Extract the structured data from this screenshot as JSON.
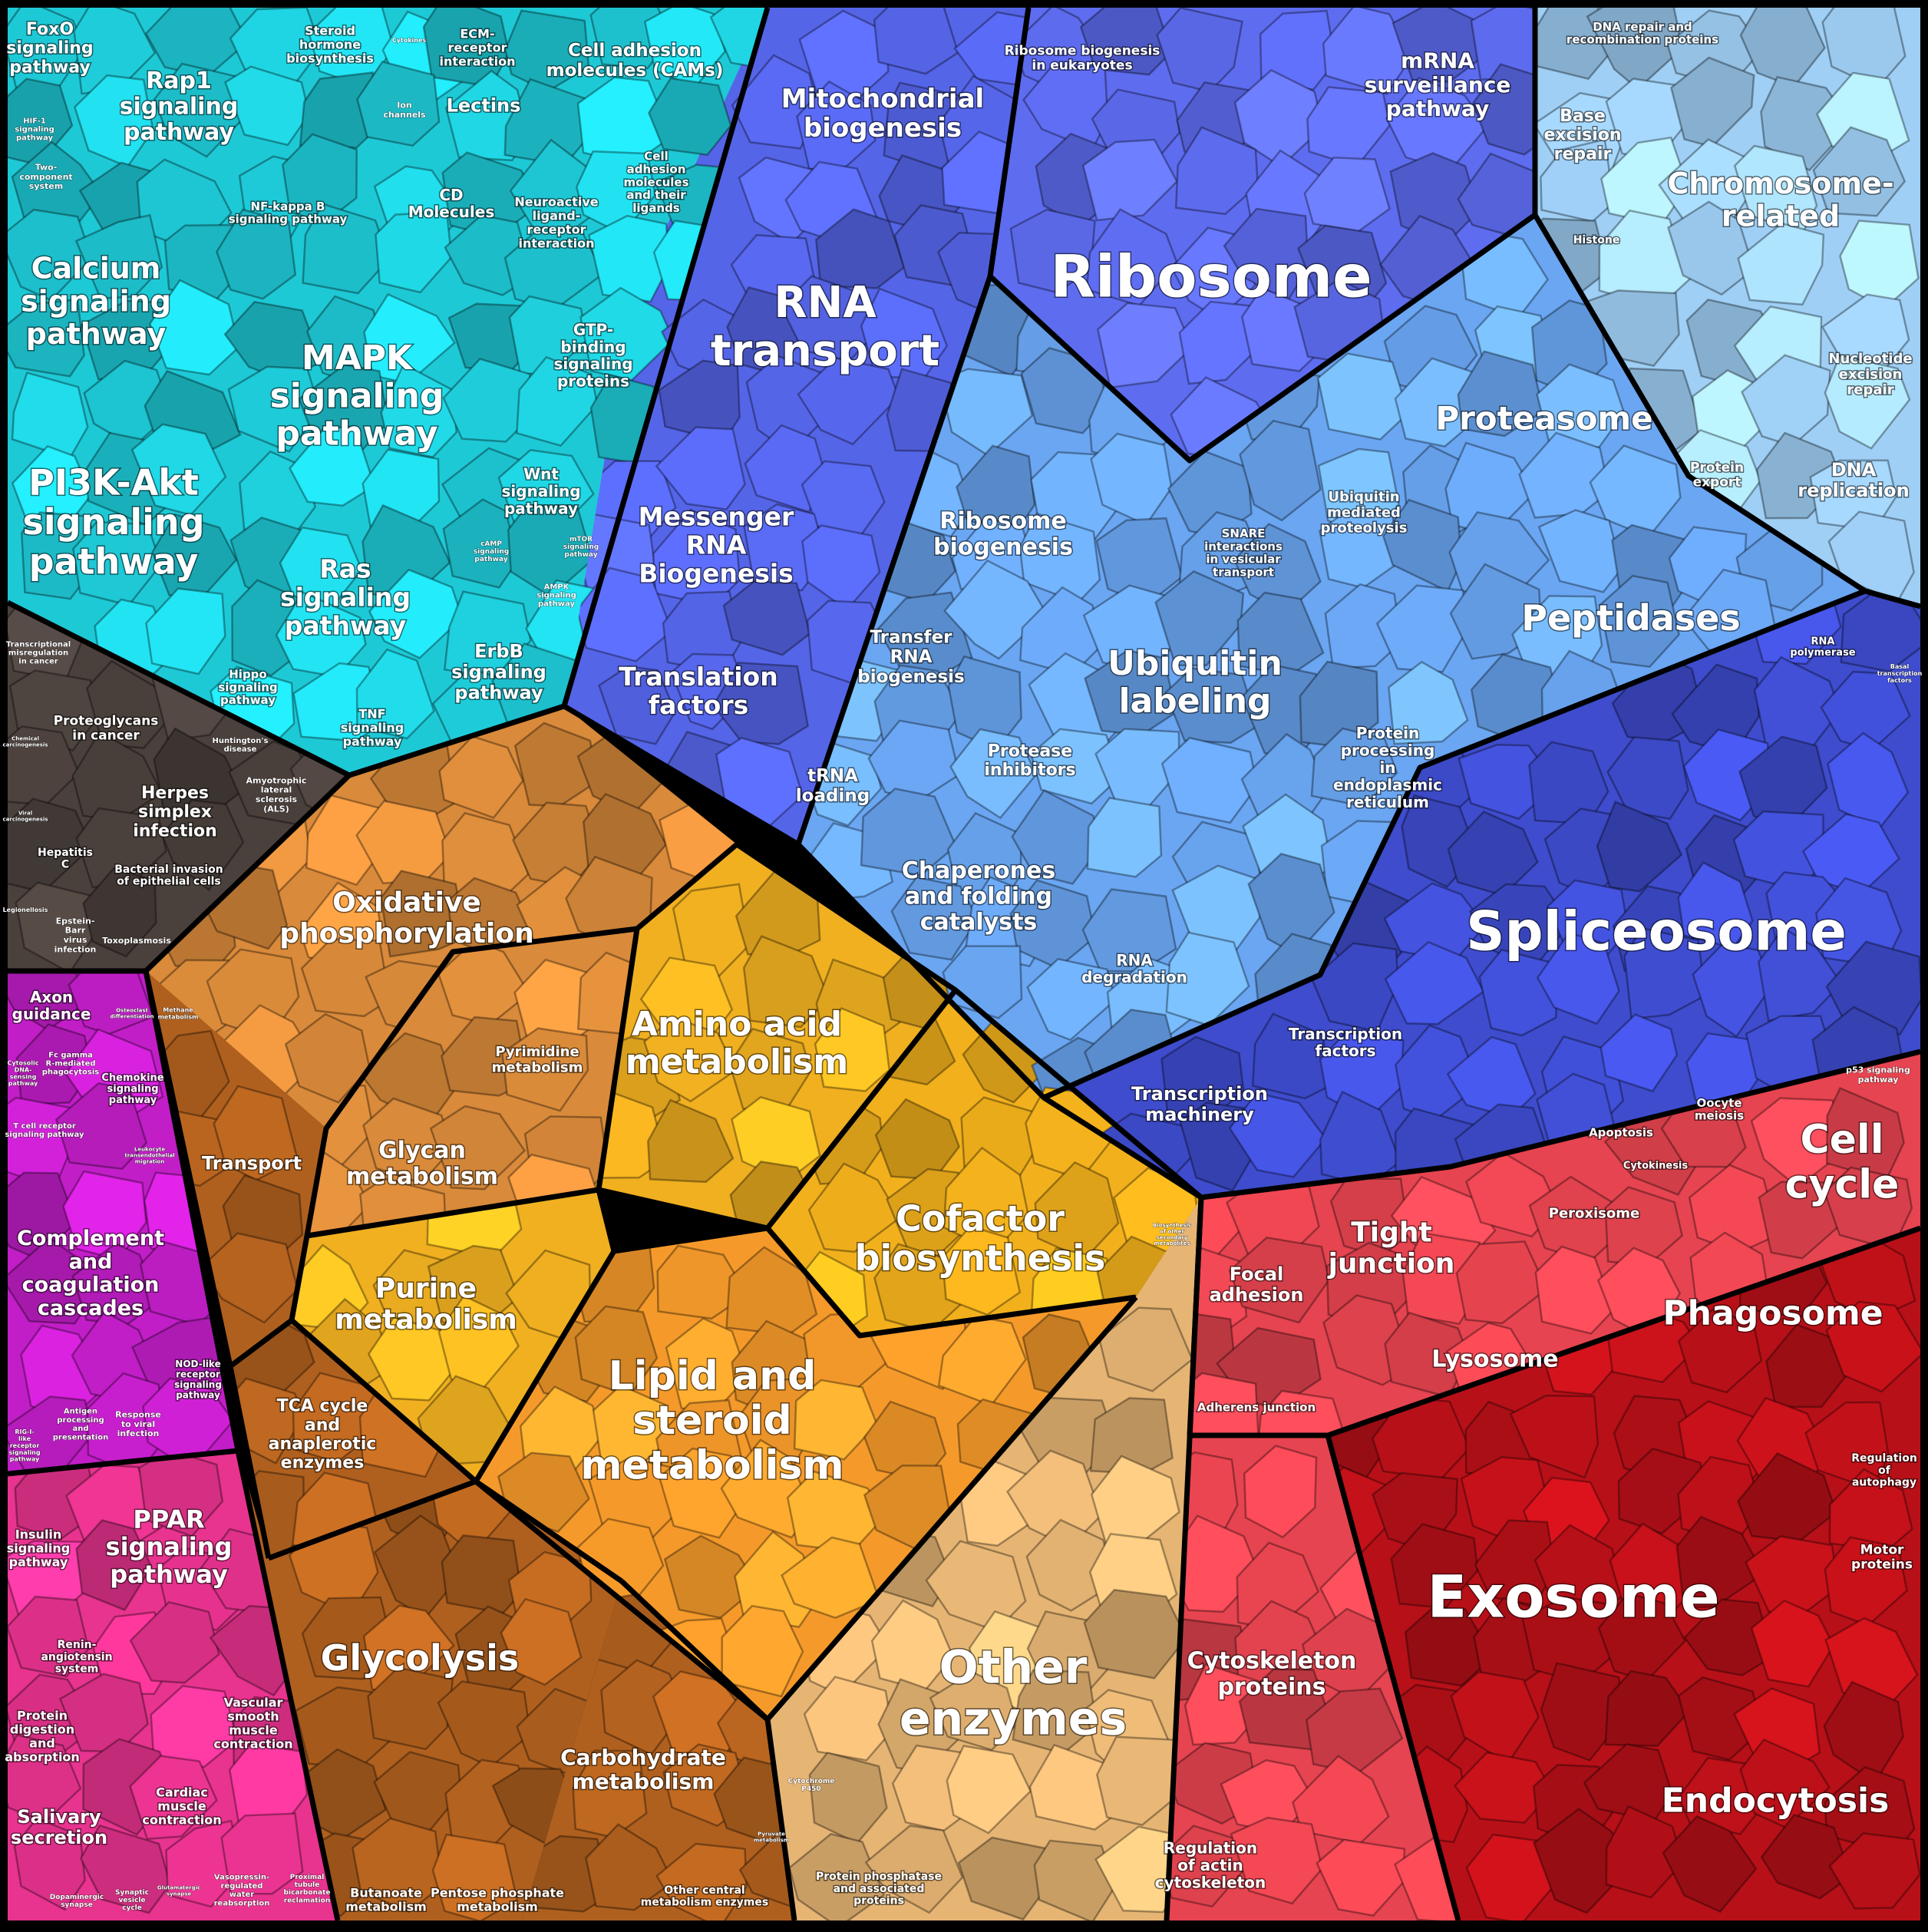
{
  "colors": {
    "signaling": "#1ec9d6",
    "disease": "#4a403c",
    "immune": "#c21ec8",
    "endocrine": "#e8338f",
    "metabolism_oxphos": "#d98a3a",
    "amino_acid": "#f0b020",
    "lipid": "#f59a2a",
    "cofactor": "#f2b11c",
    "glycolysis": "#b0601e",
    "other_enzymes": "#e6b574",
    "rna": "#5565e8",
    "ribosome": "#5e6cf0",
    "protein_processing": "#6aa6f2",
    "chromosome": "#9fcff5",
    "spliceosome": "#3e4ccd",
    "cellular": "#e64450",
    "exosome": "#b81018"
  },
  "labels": [
    {
      "id": "foxo",
      "text": [
        "FoxO",
        "signaling",
        "pathway"
      ],
      "size": 22
    },
    {
      "id": "rap1",
      "text": [
        "Rap1",
        "signaling",
        "pathway"
      ],
      "size": 30
    },
    {
      "id": "hif1",
      "text": [
        "HIF-1",
        "signaling",
        "pathway"
      ],
      "size": 10
    },
    {
      "id": "twocomp",
      "text": [
        "Two-",
        "component",
        "system"
      ],
      "size": 11
    },
    {
      "id": "nfkb",
      "text": [
        "NF-kappa B",
        "signaling pathway"
      ],
      "size": 15
    },
    {
      "id": "calcium",
      "text": [
        "Calcium",
        "signaling",
        "pathway"
      ],
      "size": 38
    },
    {
      "id": "mapk",
      "text": [
        "MAPK",
        "signaling",
        "pathway"
      ],
      "size": 44
    },
    {
      "id": "pi3k",
      "text": [
        "PI3K-Akt",
        "signaling",
        "pathway"
      ],
      "size": 46
    },
    {
      "id": "ras",
      "text": [
        "Ras",
        "signaling",
        "pathway"
      ],
      "size": 33
    },
    {
      "id": "wnt",
      "text": [
        "Wnt",
        "signaling",
        "pathway"
      ],
      "size": 20
    },
    {
      "id": "camp",
      "text": [
        "cAMP",
        "signaling",
        "pathway"
      ],
      "size": 9
    },
    {
      "id": "mtor",
      "text": [
        "mTOR",
        "signaling",
        "pathway"
      ],
      "size": 9
    },
    {
      "id": "ampk",
      "text": [
        "AMPK",
        "signaling",
        "pathway"
      ],
      "size": 10
    },
    {
      "id": "erbb",
      "text": [
        "ErbB",
        "signaling",
        "pathway"
      ],
      "size": 24
    },
    {
      "id": "hippo",
      "text": [
        "Hippo",
        "signaling",
        "pathway"
      ],
      "size": 15
    },
    {
      "id": "tnf",
      "text": [
        "TNF",
        "signaling",
        "pathway"
      ],
      "size": 16
    },
    {
      "id": "steroid",
      "text": [
        "Steroid",
        "hormone",
        "biosynthesis"
      ],
      "size": 16
    },
    {
      "id": "cytokines",
      "text": [
        "Cytokines"
      ],
      "size": 8
    },
    {
      "id": "ecm",
      "text": [
        "ECM-",
        "receptor",
        "interaction"
      ],
      "size": 16
    },
    {
      "id": "cams",
      "text": [
        "Cell adhesion",
        "molecules (CAMs)"
      ],
      "size": 23
    },
    {
      "id": "ionch",
      "text": [
        "Ion",
        "channels"
      ],
      "size": 11
    },
    {
      "id": "lectins",
      "text": [
        "Lectins"
      ],
      "size": 24
    },
    {
      "id": "cdmol",
      "text": [
        "CD",
        "Molecules"
      ],
      "size": 20
    },
    {
      "id": "neuro",
      "text": [
        "Neuroactive",
        "ligand-",
        "receptor",
        "interaction"
      ],
      "size": 16
    },
    {
      "id": "cellad",
      "text": [
        "Cell",
        "adhesion",
        "molecules",
        "and their",
        "ligands"
      ],
      "size": 15
    },
    {
      "id": "gtp",
      "text": [
        "GTP-",
        "binding",
        "signaling",
        "proteins"
      ],
      "size": 20
    },
    {
      "id": "transmir",
      "text": [
        "Transcriptional",
        "misregulation",
        "in cancer"
      ],
      "size": 10
    },
    {
      "id": "proteoglycans",
      "text": [
        "Proteoglycans",
        "in cancer"
      ],
      "size": 17
    },
    {
      "id": "chemcarc",
      "text": [
        "Chemical",
        "carcinogenesis"
      ],
      "size": 7
    },
    {
      "id": "huntington",
      "text": [
        "Huntington's",
        "disease"
      ],
      "size": 10
    },
    {
      "id": "herpes",
      "text": [
        "Herpes",
        "simplex",
        "infection"
      ],
      "size": 22
    },
    {
      "id": "als",
      "text": [
        "Amyotrophic",
        "lateral",
        "sclerosis",
        "(ALS)"
      ],
      "size": 11
    },
    {
      "id": "viral",
      "text": [
        "Viral",
        "carcinogenesis"
      ],
      "size": 7
    },
    {
      "id": "hepc",
      "text": [
        "Hepatitis",
        "C"
      ],
      "size": 14
    },
    {
      "id": "bacterial",
      "text": [
        "Bacterial invasion",
        "of epithelial cells"
      ],
      "size": 14
    },
    {
      "id": "legion",
      "text": [
        "Legionellosis"
      ],
      "size": 8
    },
    {
      "id": "ebv",
      "text": [
        "Epstein-",
        "Barr",
        "virus",
        "infection"
      ],
      "size": 11
    },
    {
      "id": "toxo",
      "text": [
        "Toxoplasmosis"
      ],
      "size": 11
    },
    {
      "id": "axon",
      "text": [
        "Axon",
        "guidance"
      ],
      "size": 20
    },
    {
      "id": "osteo",
      "text": [
        "Osteoclast",
        "differentiation"
      ],
      "size": 7
    },
    {
      "id": "cytosolic",
      "text": [
        "Cytosolic",
        "DNA-",
        "sensing",
        "pathway"
      ],
      "size": 8
    },
    {
      "id": "fcgamma",
      "text": [
        "Fc gamma",
        "R-mediated",
        "phagocytosis"
      ],
      "size": 10
    },
    {
      "id": "chemokine",
      "text": [
        "Chemokine",
        "signaling",
        "pathway"
      ],
      "size": 13
    },
    {
      "id": "tcell",
      "text": [
        "T cell receptor",
        "signaling pathway"
      ],
      "size": 10
    },
    {
      "id": "leukocyte",
      "text": [
        "Leukocyte",
        "transendothelial",
        "migration"
      ],
      "size": 7
    },
    {
      "id": "complement",
      "text": [
        "Complement",
        "and",
        "coagulation",
        "cascades"
      ],
      "size": 27
    },
    {
      "id": "nodlike",
      "text": [
        "NOD-like",
        "receptor",
        "signaling",
        "pathway"
      ],
      "size": 12
    },
    {
      "id": "rigi",
      "text": [
        "RIG-I-",
        "like",
        "receptor",
        "signaling",
        "pathway"
      ],
      "size": 8
    },
    {
      "id": "antigen",
      "text": [
        "Antigen",
        "processing",
        "and",
        "presentation"
      ],
      "size": 10
    },
    {
      "id": "response",
      "text": [
        "Response",
        "to viral",
        "infection"
      ],
      "size": 11
    },
    {
      "id": "insulin",
      "text": [
        "Insulin",
        "signaling",
        "pathway"
      ],
      "size": 16
    },
    {
      "id": "ppar",
      "text": [
        "PPAR",
        "signaling",
        "pathway"
      ],
      "size": 32
    },
    {
      "id": "renin",
      "text": [
        "Renin-",
        "angiotensin",
        "system"
      ],
      "size": 14
    },
    {
      "id": "protdig",
      "text": [
        "Protein",
        "digestion",
        "and",
        "absorption"
      ],
      "size": 16
    },
    {
      "id": "vascular",
      "text": [
        "Vascular",
        "smooth",
        "muscle",
        "contraction"
      ],
      "size": 16
    },
    {
      "id": "cardiac",
      "text": [
        "Cardiac",
        "muscle",
        "contraction"
      ],
      "size": 16
    },
    {
      "id": "salivary",
      "text": [
        "Salivary",
        "secretion"
      ],
      "size": 24
    },
    {
      "id": "dopa",
      "text": [
        "Dopaminergic",
        "synapse"
      ],
      "size": 9
    },
    {
      "id": "synaptic",
      "text": [
        "Synaptic",
        "vesicle",
        "cycle"
      ],
      "size": 9
    },
    {
      "id": "gluta",
      "text": [
        "Glutamatergic",
        "synapse"
      ],
      "size": 7
    },
    {
      "id": "vasopressin",
      "text": [
        "Vasopressin-",
        "regulated",
        "water",
        "reabsorption"
      ],
      "size": 10
    },
    {
      "id": "proximal",
      "text": [
        "Proximal",
        "tubule",
        "bicarbonate",
        "reclamation"
      ],
      "size": 9
    },
    {
      "id": "oxphos",
      "text": [
        "Oxidative",
        "phosphorylation"
      ],
      "size": 36
    },
    {
      "id": "methane",
      "text": [
        "Methane",
        "metabolism"
      ],
      "size": 8
    },
    {
      "id": "pyrimidine",
      "text": [
        "Pyrimidine",
        "metabolism"
      ],
      "size": 18
    },
    {
      "id": "amino",
      "text": [
        "Amino acid",
        "metabolism"
      ],
      "size": 44
    },
    {
      "id": "transport",
      "text": [
        "Transport"
      ],
      "size": 24
    },
    {
      "id": "glycan",
      "text": [
        "Glycan",
        "metabolism"
      ],
      "size": 30
    },
    {
      "id": "purine",
      "text": [
        "Purine",
        "metabolism"
      ],
      "size": 36
    },
    {
      "id": "cofactor",
      "text": [
        "Cofactor",
        "biosynthesis"
      ],
      "size": 46
    },
    {
      "id": "secmet",
      "text": [
        "Biosynthesis",
        "of other",
        "secondary",
        "metabolites"
      ],
      "size": 7
    },
    {
      "id": "tca",
      "text": [
        "TCA cycle",
        "and",
        "anaplerotic",
        "enzymes"
      ],
      "size": 22
    },
    {
      "id": "lipid",
      "text": [
        "Lipid and",
        "steroid",
        "metabolism"
      ],
      "size": 52
    },
    {
      "id": "glycolysis",
      "text": [
        "Glycolysis"
      ],
      "size": 46
    },
    {
      "id": "carbo",
      "text": [
        "Carbohydrate",
        "metabolism"
      ],
      "size": 28
    },
    {
      "id": "other",
      "text": [
        "Other",
        "enzymes"
      ],
      "size": 60
    },
    {
      "id": "cytp450",
      "text": [
        "Cytochrome",
        "P450"
      ],
      "size": 9
    },
    {
      "id": "pyruvate",
      "text": [
        "Pyruvate",
        "metabolism"
      ],
      "size": 7
    },
    {
      "id": "butanoate",
      "text": [
        "Butanoate",
        "metabolism"
      ],
      "size": 16
    },
    {
      "id": "pentose",
      "text": [
        "Pentose phosphate",
        "metabolism"
      ],
      "size": 16
    },
    {
      "id": "othercentral",
      "text": [
        "Other central",
        "metabolism enzymes"
      ],
      "size": 14
    },
    {
      "id": "protphos",
      "text": [
        "Protein phosphatase",
        "and associated",
        "proteins"
      ],
      "size": 14
    },
    {
      "id": "mitobio",
      "text": [
        "Mitochondrial",
        "biogenesis"
      ],
      "size": 34
    },
    {
      "id": "ribobioeuk",
      "text": [
        "Ribosome biogenesis",
        "in eukaryotes"
      ],
      "size": 17
    },
    {
      "id": "mrnasurv",
      "text": [
        "mRNA",
        "surveillance",
        "pathway"
      ],
      "size": 28
    },
    {
      "id": "dnarepair",
      "text": [
        "DNA repair and",
        "recombination proteins"
      ],
      "size": 15
    },
    {
      "id": "ber",
      "text": [
        "Base",
        "excision",
        "repair"
      ],
      "size": 22
    },
    {
      "id": "chromosome",
      "text": [
        "Chromosome-",
        "related"
      ],
      "size": 38
    },
    {
      "id": "histone",
      "text": [
        "Histone"
      ],
      "size": 14
    },
    {
      "id": "rnatransport",
      "text": [
        "RNA",
        "transport"
      ],
      "size": 56
    },
    {
      "id": "ribosome",
      "text": [
        "Ribosome"
      ],
      "size": 76
    },
    {
      "id": "ner",
      "text": [
        "Nucleotide",
        "excision",
        "repair"
      ],
      "size": 18
    },
    {
      "id": "proteasome",
      "text": [
        "Proteasome"
      ],
      "size": 42
    },
    {
      "id": "protexport",
      "text": [
        "Protein",
        "export"
      ],
      "size": 17
    },
    {
      "id": "dnarep",
      "text": [
        "DNA",
        "replication"
      ],
      "size": 24
    },
    {
      "id": "messenger",
      "text": [
        "Messenger",
        "RNA",
        "Biogenesis"
      ],
      "size": 33
    },
    {
      "id": "ribobio",
      "text": [
        "Ribosome",
        "biogenesis"
      ],
      "size": 30
    },
    {
      "id": "ubprot",
      "text": [
        "Ubiquitin",
        "mediated",
        "proteolysis"
      ],
      "size": 18
    },
    {
      "id": "snare",
      "text": [
        "SNARE",
        "interactions",
        "in vesicular",
        "transport"
      ],
      "size": 15
    },
    {
      "id": "peptidases",
      "text": [
        "Peptidases"
      ],
      "size": 46
    },
    {
      "id": "transrna",
      "text": [
        "Transfer",
        "RNA",
        "biogenesis"
      ],
      "size": 23
    },
    {
      "id": "transl",
      "text": [
        "Translation",
        "factors"
      ],
      "size": 33
    },
    {
      "id": "ubiq",
      "text": [
        "Ubiquitin",
        "labeling"
      ],
      "size": 44
    },
    {
      "id": "rnapol",
      "text": [
        "RNA",
        "polymerase"
      ],
      "size": 13
    },
    {
      "id": "basal",
      "text": [
        "Basal",
        "transcription",
        "factors"
      ],
      "size": 8
    },
    {
      "id": "proteaseinh",
      "text": [
        "Protease",
        "inhibitors"
      ],
      "size": 22
    },
    {
      "id": "trna",
      "text": [
        "tRNA",
        "loading"
      ],
      "size": 23
    },
    {
      "id": "protproc",
      "text": [
        "Protein",
        "processing",
        "in",
        "endoplasmic",
        "reticulum"
      ],
      "size": 20
    },
    {
      "id": "chaperones",
      "text": [
        "Chaperones",
        "and folding",
        "catalysts"
      ],
      "size": 30
    },
    {
      "id": "spliceosome",
      "text": [
        "Spliceosome"
      ],
      "size": 70
    },
    {
      "id": "rnadeg",
      "text": [
        "RNA",
        "degradation"
      ],
      "size": 20
    },
    {
      "id": "tfactors",
      "text": [
        "Transcription",
        "factors"
      ],
      "size": 20
    },
    {
      "id": "tmachinery",
      "text": [
        "Transcription",
        "machinery"
      ],
      "size": 24
    },
    {
      "id": "p53",
      "text": [
        "p53 signaling",
        "pathway"
      ],
      "size": 11
    },
    {
      "id": "apoptosis",
      "text": [
        "Apoptosis"
      ],
      "size": 15
    },
    {
      "id": "oocyte",
      "text": [
        "Oocyte",
        "meiosis"
      ],
      "size": 15
    },
    {
      "id": "cytokinesis",
      "text": [
        "Cytokinesis"
      ],
      "size": 13
    },
    {
      "id": "cellcycle",
      "text": [
        "Cell",
        "cycle"
      ],
      "size": 52
    },
    {
      "id": "peroxisome",
      "text": [
        "Peroxisome"
      ],
      "size": 18
    },
    {
      "id": "tight",
      "text": [
        "Tight",
        "junction"
      ],
      "size": 36
    },
    {
      "id": "focal",
      "text": [
        "Focal",
        "adhesion"
      ],
      "size": 24
    },
    {
      "id": "phagosome",
      "text": [
        "Phagosome"
      ],
      "size": 44
    },
    {
      "id": "lysosome",
      "text": [
        "Lysosome"
      ],
      "size": 30
    },
    {
      "id": "adherens",
      "text": [
        "Adherens junction"
      ],
      "size": 15
    },
    {
      "id": "autophagy",
      "text": [
        "Regulation",
        "of",
        "autophagy"
      ],
      "size": 14
    },
    {
      "id": "motor",
      "text": [
        "Motor",
        "proteins"
      ],
      "size": 17
    },
    {
      "id": "exosome",
      "text": [
        "Exosome"
      ],
      "size": 76
    },
    {
      "id": "cytoskeleton",
      "text": [
        "Cytoskeleton",
        "proteins"
      ],
      "size": 30
    },
    {
      "id": "endocytosis",
      "text": [
        "Endocytosis"
      ],
      "size": 44
    },
    {
      "id": "regactin",
      "text": [
        "Regulation",
        "of actin",
        "cytoskeleton"
      ],
      "size": 20
    }
  ]
}
